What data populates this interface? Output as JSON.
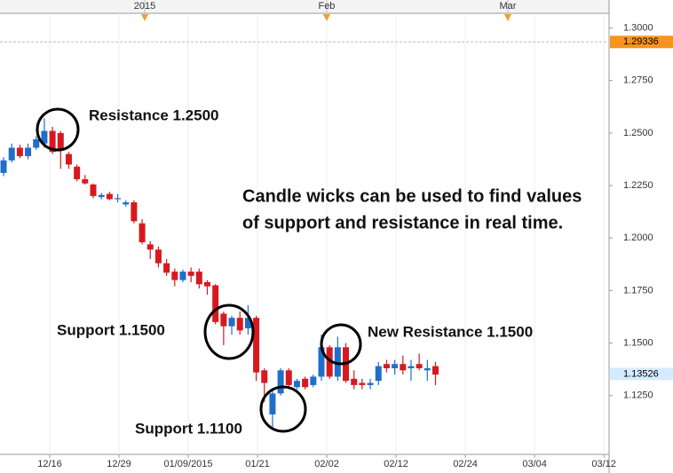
{
  "chart_data": {
    "type": "candlestick",
    "series": {
      "up_color": "#1f6ec9",
      "down_color": "#d7191f",
      "open": [
        1.231,
        1.237,
        1.243,
        1.239,
        1.243,
        1.245,
        1.251,
        1.25,
        1.24,
        1.234,
        1.228,
        1.2255,
        1.2195,
        1.221,
        1.2185,
        1.216,
        1.217,
        1.207,
        1.197,
        1.1945,
        1.188,
        1.184,
        1.18,
        1.184,
        1.184,
        1.179,
        1.1775,
        1.164,
        1.158,
        1.162,
        1.157,
        1.162,
        1.137,
        1.116,
        1.126,
        1.137,
        1.129,
        1.133,
        1.13,
        1.134,
        1.148,
        1.134,
        1.148,
        1.133,
        1.131,
        1.13,
        1.132,
        1.14,
        1.138,
        1.14,
        1.138,
        1.14,
        1.137,
        1.139
      ],
      "high": [
        1.2385,
        1.245,
        1.2445,
        1.245,
        1.2485,
        1.257,
        1.253,
        1.251,
        1.241,
        1.235,
        1.23,
        1.226,
        1.2215,
        1.222,
        1.221,
        1.218,
        1.218,
        1.209,
        1.1985,
        1.196,
        1.19,
        1.1855,
        1.185,
        1.186,
        1.1855,
        1.18,
        1.178,
        1.165,
        1.163,
        1.165,
        1.168,
        1.163,
        1.138,
        1.128,
        1.138,
        1.138,
        1.133,
        1.134,
        1.135,
        1.154,
        1.149,
        1.153,
        1.15,
        1.137,
        1.133,
        1.133,
        1.141,
        1.142,
        1.142,
        1.144,
        1.142,
        1.145,
        1.142,
        1.141
      ],
      "low": [
        1.2295,
        1.236,
        1.238,
        1.2375,
        1.242,
        1.243,
        1.24,
        1.233,
        1.233,
        1.227,
        1.2255,
        1.219,
        1.2185,
        1.218,
        1.217,
        1.215,
        1.207,
        1.197,
        1.19,
        1.186,
        1.182,
        1.177,
        1.179,
        1.179,
        1.176,
        1.173,
        1.159,
        1.149,
        1.154,
        1.154,
        1.154,
        1.132,
        1.122,
        1.11,
        1.125,
        1.128,
        1.128,
        1.128,
        1.129,
        1.132,
        1.133,
        1.132,
        1.131,
        1.128,
        1.128,
        1.128,
        1.13,
        1.136,
        1.135,
        1.135,
        1.132,
        1.137,
        1.132,
        1.13
      ],
      "close": [
        1.237,
        1.243,
        1.239,
        1.243,
        1.247,
        1.251,
        1.241,
        1.242,
        1.235,
        1.228,
        1.226,
        1.22,
        1.2205,
        1.2185,
        1.219,
        1.217,
        1.208,
        1.198,
        1.1945,
        1.188,
        1.1835,
        1.18,
        1.184,
        1.182,
        1.178,
        1.177,
        1.16,
        1.158,
        1.162,
        1.156,
        1.162,
        1.136,
        1.131,
        1.126,
        1.137,
        1.13,
        1.132,
        1.129,
        1.134,
        1.148,
        1.134,
        1.148,
        1.132,
        1.13,
        1.13,
        1.131,
        1.139,
        1.138,
        1.14,
        1.137,
        1.139,
        1.138,
        1.138,
        1.135
      ]
    },
    "ylim": [
      1.097,
      1.307
    ],
    "yticks": [
      {
        "value": 1.3,
        "label": "1.3000"
      },
      {
        "value": 1.275,
        "label": "1.2750"
      },
      {
        "value": 1.25,
        "label": "1.2500"
      },
      {
        "value": 1.225,
        "label": "1.2250"
      },
      {
        "value": 1.2,
        "label": "1.2000"
      },
      {
        "value": 1.175,
        "label": "1.1750"
      },
      {
        "value": 1.15,
        "label": "1.1500"
      },
      {
        "value": 1.125,
        "label": "1.1250"
      }
    ],
    "xlim": [
      -0.44,
      74.3
    ],
    "xticks": [
      {
        "value": 5.66,
        "label": "12/16"
      },
      {
        "value": 14.16,
        "label": "12/29"
      },
      {
        "value": 22.66,
        "label": "01/09/2015"
      },
      {
        "value": 31.16,
        "label": "01/21"
      },
      {
        "value": 39.66,
        "label": "02/02"
      },
      {
        "value": 48.16,
        "label": "02/12"
      },
      {
        "value": 56.66,
        "label": "02/24"
      },
      {
        "value": 65.16,
        "label": "03/04"
      },
      {
        "value": 73.66,
        "label": "03/12"
      }
    ],
    "x2ticks": [
      {
        "value": 17.32,
        "label": "2015"
      },
      {
        "value": 39.65,
        "label": "Feb"
      },
      {
        "value": 61.88,
        "label": "Mar"
      }
    ],
    "price_markers": [
      {
        "value": 1.29336,
        "color": "#f7941d"
      },
      {
        "value": 1.13526,
        "color": "#d6ebff"
      }
    ],
    "grid": true,
    "annotations": [
      "Resistance 1.2500",
      "Candle wicks can be used to find values",
      "of support and resistance in real time.",
      "Support 1.1500",
      "New Resistance 1.1500",
      "Support 1.1100"
    ]
  }
}
